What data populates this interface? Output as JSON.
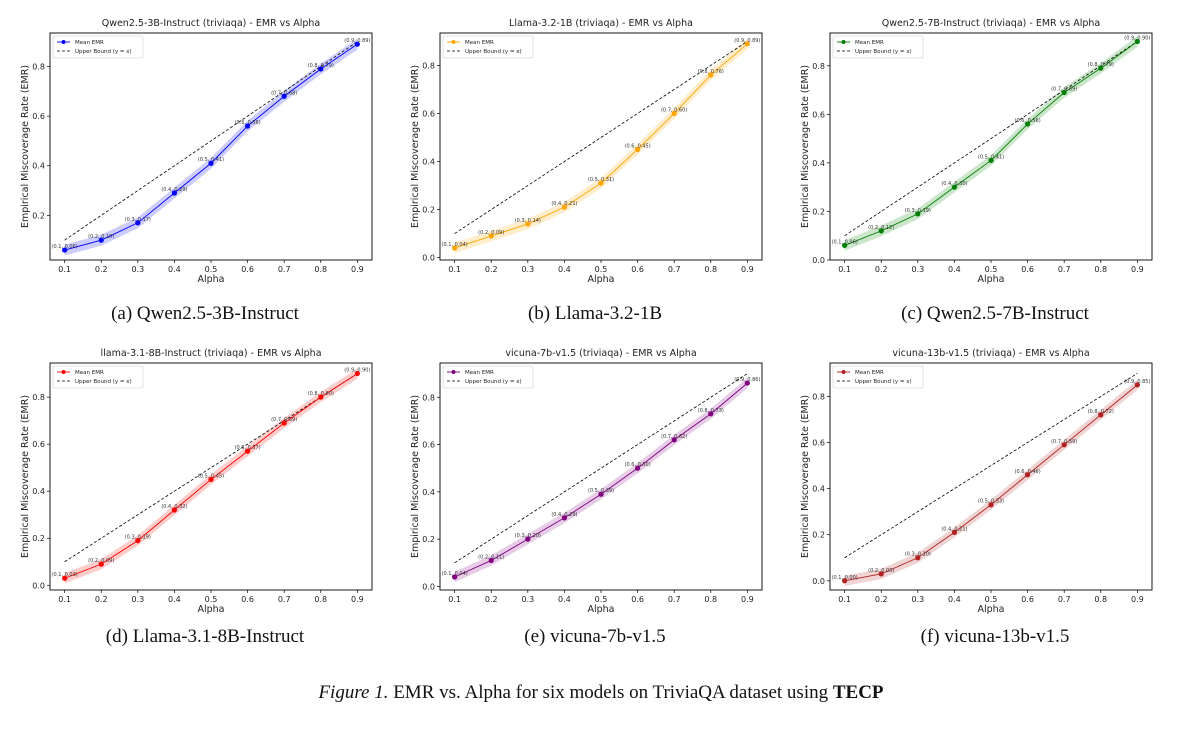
{
  "chart_data": [
    {
      "type": "line",
      "title": "Qwen2.5-3B-Instruct (triviaqa) - EMR vs Alpha",
      "xlabel": "Alpha",
      "ylabel": "Empirical Miscoverage Rate (EMR)",
      "x": [
        0.1,
        0.2,
        0.3,
        0.4,
        0.5,
        0.6,
        0.7,
        0.8,
        0.9
      ],
      "series": [
        {
          "name": "Mean EMR",
          "color": "#0000ff",
          "values": [
            0.06,
            0.1,
            0.17,
            0.29,
            0.41,
            0.56,
            0.68,
            0.79,
            0.89
          ]
        },
        {
          "name": "Upper Bound (y = x)",
          "color": "#000000",
          "style": "dashed",
          "values": [
            0.1,
            0.2,
            0.3,
            0.4,
            0.5,
            0.6,
            0.7,
            0.8,
            0.9
          ]
        }
      ],
      "data_labels": [
        "(0.1, 0.06)",
        "(0.2, 0.10)",
        "(0.3, 0.17)",
        "(0.4, 0.29)",
        "(0.5, 0.41)",
        "(0.6, 0.56)",
        "(0.7, 0.68)",
        "(0.8, 0.79)",
        "(0.9, 0.89)"
      ],
      "xticks": [
        "0.1",
        "0.2",
        "0.3",
        "0.4",
        "0.5",
        "0.6",
        "0.7",
        "0.8",
        "0.9"
      ],
      "yticks": [
        "0.2",
        "0.4",
        "0.6",
        "0.8"
      ],
      "xlim": [
        0.06,
        0.94
      ],
      "ylim": [
        0.02,
        0.935
      ],
      "grid": false,
      "legend": "top-left",
      "caption": "(a)  Qwen2.5-3B-Instruct"
    },
    {
      "type": "line",
      "title": "Llama-3.2-1B (triviaqa) - EMR vs Alpha",
      "xlabel": "Alpha",
      "ylabel": "Empirical Miscoverage Rate (EMR)",
      "x": [
        0.1,
        0.2,
        0.3,
        0.4,
        0.5,
        0.6,
        0.7,
        0.8,
        0.9
      ],
      "series": [
        {
          "name": "Mean EMR",
          "color": "#ffa500",
          "values": [
            0.04,
            0.09,
            0.14,
            0.21,
            0.31,
            0.45,
            0.6,
            0.76,
            0.89
          ]
        },
        {
          "name": "Upper Bound (y = x)",
          "color": "#000000",
          "style": "dashed",
          "values": [
            0.1,
            0.2,
            0.3,
            0.4,
            0.5,
            0.6,
            0.7,
            0.8,
            0.9
          ]
        }
      ],
      "data_labels": [
        "(0.1, 0.04)",
        "(0.2, 0.09)",
        "(0.3, 0.14)",
        "(0.4, 0.21)",
        "(0.5, 0.31)",
        "(0.6, 0.45)",
        "(0.7, 0.60)",
        "(0.8, 0.76)",
        "(0.9, 0.89)"
      ],
      "xticks": [
        "0.1",
        "0.2",
        "0.3",
        "0.4",
        "0.5",
        "0.6",
        "0.7",
        "0.8",
        "0.9"
      ],
      "yticks": [
        "0.0",
        "0.2",
        "0.4",
        "0.6",
        "0.8"
      ],
      "xlim": [
        0.06,
        0.94
      ],
      "ylim": [
        -0.01,
        0.935
      ],
      "grid": false,
      "legend": "top-left",
      "caption": "(b)  Llama-3.2-1B"
    },
    {
      "type": "line",
      "title": "Qwen2.5-7B-Instruct (triviaqa) - EMR vs Alpha",
      "xlabel": "Alpha",
      "ylabel": "Empirical Miscoverage Rate (EMR)",
      "x": [
        0.1,
        0.2,
        0.3,
        0.4,
        0.5,
        0.6,
        0.7,
        0.8,
        0.9
      ],
      "series": [
        {
          "name": "Mean EMR",
          "color": "#008000",
          "values": [
            0.06,
            0.12,
            0.19,
            0.3,
            0.41,
            0.56,
            0.69,
            0.79,
            0.9
          ]
        },
        {
          "name": "Upper Bound (y = x)",
          "color": "#000000",
          "style": "dashed",
          "values": [
            0.1,
            0.2,
            0.3,
            0.4,
            0.5,
            0.6,
            0.7,
            0.8,
            0.9
          ]
        }
      ],
      "data_labels": [
        "(0.1, 0.06)",
        "(0.2, 0.12)",
        "(0.3, 0.19)",
        "(0.4, 0.30)",
        "(0.5, 0.41)",
        "(0.6, 0.56)",
        "(0.7, 0.69)",
        "(0.8, 0.79)",
        "(0.9, 0.90)"
      ],
      "xticks": [
        "0.1",
        "0.2",
        "0.3",
        "0.4",
        "0.5",
        "0.6",
        "0.7",
        "0.8",
        "0.9"
      ],
      "yticks": [
        "0.0",
        "0.2",
        "0.4",
        "0.6",
        "0.8"
      ],
      "xlim": [
        0.06,
        0.94
      ],
      "ylim": [
        0.0,
        0.935
      ],
      "grid": false,
      "legend": "top-left",
      "caption": "(c)  Qwen2.5-7B-Instruct"
    },
    {
      "type": "line",
      "title": "llama-3.1-8B-Instruct (triviaqa) - EMR vs Alpha",
      "xlabel": "Alpha",
      "ylabel": "Empirical Miscoverage Rate (EMR)",
      "x": [
        0.1,
        0.2,
        0.3,
        0.4,
        0.5,
        0.6,
        0.7,
        0.8,
        0.9
      ],
      "series": [
        {
          "name": "Mean EMR",
          "color": "#ff0000",
          "values": [
            0.03,
            0.09,
            0.19,
            0.32,
            0.45,
            0.57,
            0.69,
            0.8,
            0.9
          ]
        },
        {
          "name": "Upper Bound (y = x)",
          "color": "#000000",
          "style": "dashed",
          "values": [
            0.1,
            0.2,
            0.3,
            0.4,
            0.5,
            0.6,
            0.7,
            0.8,
            0.9
          ]
        }
      ],
      "data_labels": [
        "(0.1, 0.03)",
        "(0.2, 0.09)",
        "(0.3, 0.19)",
        "(0.4, 0.32)",
        "(0.5, 0.45)",
        "(0.6, 0.57)",
        "(0.7, 0.69)",
        "(0.8, 0.80)",
        "(0.9, 0.90)"
      ],
      "xticks": [
        "0.1",
        "0.2",
        "0.3",
        "0.4",
        "0.5",
        "0.6",
        "0.7",
        "0.8",
        "0.9"
      ],
      "yticks": [
        "0.0",
        "0.2",
        "0.4",
        "0.6",
        "0.8"
      ],
      "xlim": [
        0.06,
        0.94
      ],
      "ylim": [
        -0.02,
        0.945
      ],
      "grid": false,
      "legend": "top-left",
      "caption": "(d)  Llama-3.1-8B-Instruct"
    },
    {
      "type": "line",
      "title": "vicuna-7b-v1.5 (triviaqa) - EMR vs Alpha",
      "xlabel": "Alpha",
      "ylabel": "Empirical Miscoverage Rate (EMR)",
      "x": [
        0.1,
        0.2,
        0.3,
        0.4,
        0.5,
        0.6,
        0.7,
        0.8,
        0.9
      ],
      "series": [
        {
          "name": "Mean EMR",
          "color": "#800080",
          "values": [
            0.04,
            0.11,
            0.2,
            0.29,
            0.39,
            0.5,
            0.62,
            0.73,
            0.86
          ]
        },
        {
          "name": "Upper Bound (y = x)",
          "color": "#000000",
          "style": "dashed",
          "values": [
            0.1,
            0.2,
            0.3,
            0.4,
            0.5,
            0.6,
            0.7,
            0.8,
            0.9
          ]
        }
      ],
      "data_labels": [
        "(0.1, 0.04)",
        "(0.2, 0.11)",
        "(0.3, 0.20)",
        "(0.4, 0.29)",
        "(0.5, 0.39)",
        "(0.6, 0.50)",
        "(0.7, 0.62)",
        "(0.8, 0.73)",
        "(0.9, 0.86)"
      ],
      "xticks": [
        "0.1",
        "0.2",
        "0.3",
        "0.4",
        "0.5",
        "0.6",
        "0.7",
        "0.8",
        "0.9"
      ],
      "yticks": [
        "0.0",
        "0.2",
        "0.4",
        "0.6",
        "0.8"
      ],
      "xlim": [
        0.06,
        0.94
      ],
      "ylim": [
        -0.015,
        0.945
      ],
      "grid": false,
      "legend": "top-left",
      "caption": "(e)  vicuna-7b-v1.5"
    },
    {
      "type": "line",
      "title": "vicuna-13b-v1.5 (triviaqa) - EMR vs Alpha",
      "xlabel": "Alpha",
      "ylabel": "Empirical Miscoverage Rate (EMR)",
      "x": [
        0.1,
        0.2,
        0.3,
        0.4,
        0.5,
        0.6,
        0.7,
        0.8,
        0.9
      ],
      "series": [
        {
          "name": "Mean EMR",
          "color": "#b22222",
          "values": [
            0.0,
            0.03,
            0.1,
            0.21,
            0.33,
            0.46,
            0.59,
            0.72,
            0.85
          ]
        },
        {
          "name": "Upper Bound (y = x)",
          "color": "#000000",
          "style": "dashed",
          "values": [
            0.1,
            0.2,
            0.3,
            0.4,
            0.5,
            0.6,
            0.7,
            0.8,
            0.9
          ]
        }
      ],
      "data_labels": [
        "(0.1, 0.00)",
        "(0.2, 0.03)",
        "(0.3, 0.10)",
        "(0.4, 0.21)",
        "(0.5, 0.33)",
        "(0.6, 0.46)",
        "(0.7, 0.59)",
        "(0.8, 0.72)",
        "(0.9, 0.85)"
      ],
      "xticks": [
        "0.1",
        "0.2",
        "0.3",
        "0.4",
        "0.5",
        "0.6",
        "0.7",
        "0.8",
        "0.9"
      ],
      "yticks": [
        "0.0",
        "0.2",
        "0.4",
        "0.6",
        "0.8"
      ],
      "xlim": [
        0.06,
        0.94
      ],
      "ylim": [
        -0.04,
        0.945
      ],
      "grid": false,
      "legend": "top-left",
      "caption": "(f)  vicuna-13b-v1.5"
    }
  ],
  "figure_caption": {
    "label": "Figure 1.",
    "text": " EMR vs. Alpha for six models on TriviaQA dataset using ",
    "bold": "TECP"
  }
}
